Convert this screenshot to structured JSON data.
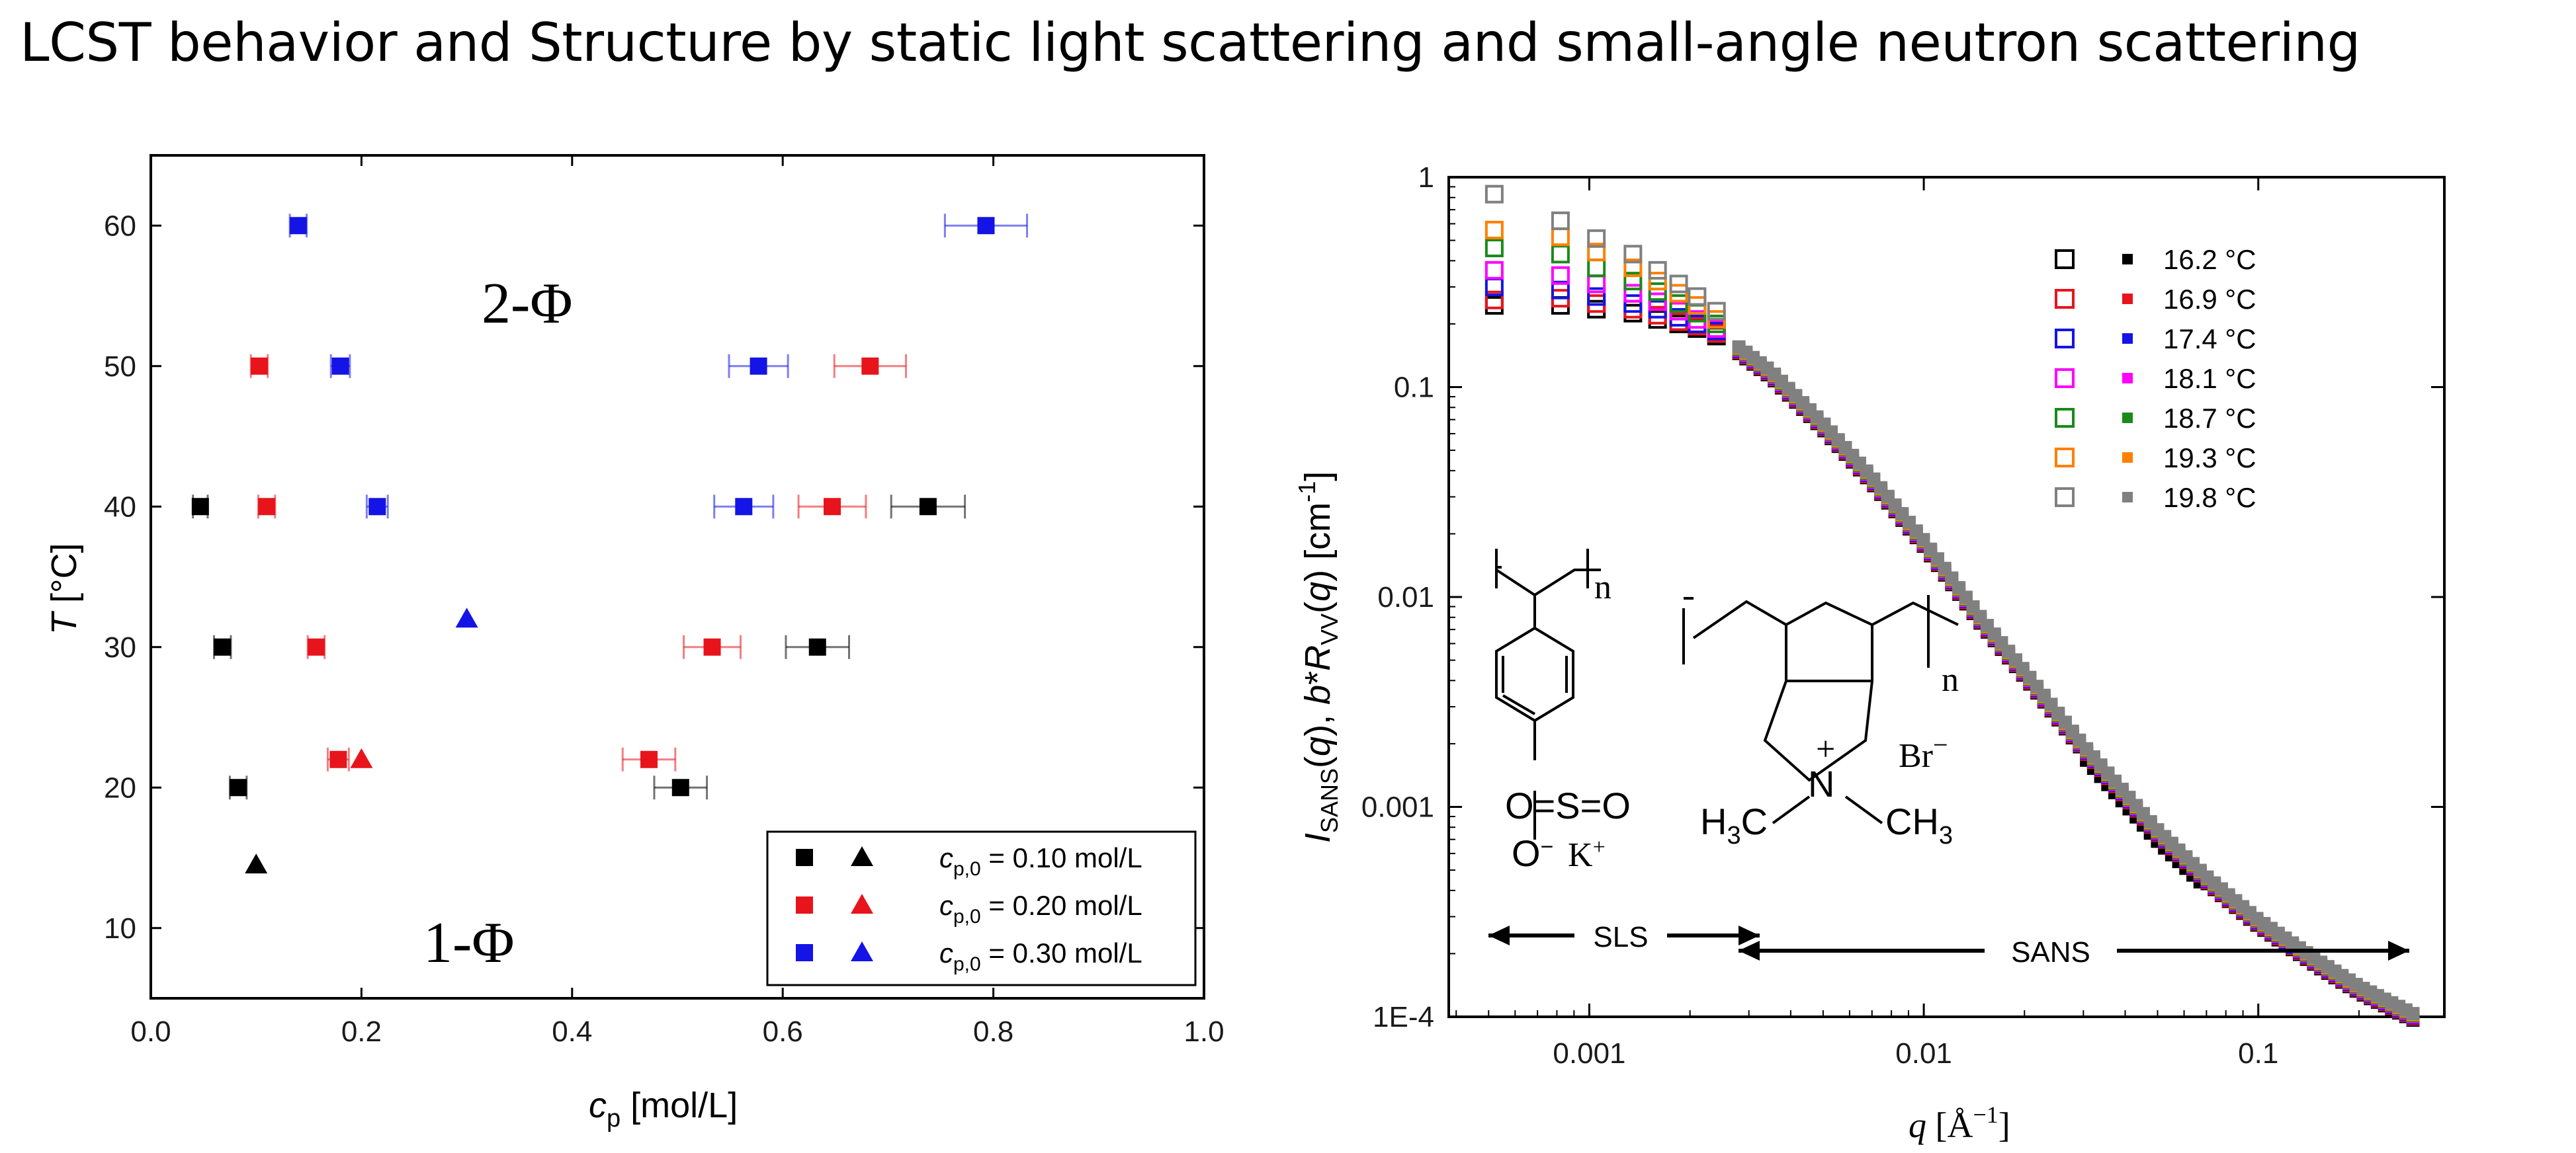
{
  "slide_title": "LCST behavior and Structure by static light scattering and small-angle neutron scattering",
  "colors": {
    "black": "#000000",
    "red": "#e8141c",
    "blue": "#1414e6",
    "magenta": "#ff00ff",
    "green": "#1a8a1a",
    "orange": "#ff8000",
    "gray": "#808080"
  },
  "chart_data": [
    {
      "type": "scatter",
      "title": "",
      "xlabel_main": "c",
      "xlabel_sub": "p",
      "xlabel_unit": " [mol/L]",
      "ylabel_main": "T",
      "ylabel_unit": " [°C]",
      "xlim": [
        0.0,
        1.0
      ],
      "ylim": [
        5,
        65
      ],
      "xticks": [
        "0.0",
        "0.2",
        "0.4",
        "0.6",
        "0.8",
        "1.0"
      ],
      "xtick_values": [
        0.0,
        0.2,
        0.4,
        0.6,
        0.8,
        1.0
      ],
      "yticks": [
        "10",
        "20",
        "30",
        "40",
        "50",
        "60"
      ],
      "ytick_values": [
        10,
        20,
        30,
        40,
        50,
        60
      ],
      "annotations": [
        {
          "text": "2-Φ",
          "x": 0.37,
          "y": 54
        },
        {
          "text": "1-Φ",
          "x": 0.32,
          "y": 9
        }
      ],
      "legend": [
        {
          "label": "c",
          "label_sub": "p,0",
          "label_rest": " = 0.10 mol/L",
          "color": "#000000"
        },
        {
          "label": "c",
          "label_sub": "p,0",
          "label_rest": " = 0.20 mol/L",
          "color": "#e8141c"
        },
        {
          "label": "c",
          "label_sub": "p,0",
          "label_rest": " = 0.30 mol/L",
          "color": "#1414e6"
        }
      ],
      "series": [
        {
          "name": "cp0 = 0.10 mol/L squares",
          "color": "#000000",
          "marker": "square",
          "points": [
            [
              0.047,
              40,
              0.007
            ],
            [
              0.068,
              30,
              0.008
            ],
            [
              0.083,
              20,
              0.008
            ],
            [
              0.633,
              30,
              0.03
            ],
            [
              0.738,
              40,
              0.035
            ],
            [
              0.503,
              20,
              0.025
            ]
          ]
        },
        {
          "name": "cp0 = 0.10 mol/L triangles",
          "color": "#000000",
          "marker": "triangle",
          "points": [
            [
              0.1,
              14.5,
              0
            ]
          ]
        },
        {
          "name": "cp0 = 0.20 mol/L squares",
          "color": "#e8141c",
          "marker": "square",
          "points": [
            [
              0.103,
              50,
              0.008
            ],
            [
              0.11,
              40,
              0.008
            ],
            [
              0.157,
              30,
              0.008
            ],
            [
              0.178,
              22,
              0.01
            ],
            [
              0.533,
              30,
              0.027
            ],
            [
              0.473,
              22,
              0.025
            ],
            [
              0.647,
              40,
              0.032
            ],
            [
              0.683,
              50,
              0.034
            ]
          ]
        },
        {
          "name": "cp0 = 0.20 mol/L triangles",
          "color": "#e8141c",
          "marker": "triangle",
          "points": [
            [
              0.2,
              22,
              0
            ]
          ]
        },
        {
          "name": "cp0 = 0.30 mol/L squares",
          "color": "#1414e6",
          "marker": "square",
          "points": [
            [
              0.14,
              60,
              0.008
            ],
            [
              0.18,
              50,
              0.009
            ],
            [
              0.215,
              40,
              0.01
            ],
            [
              0.577,
              50,
              0.028
            ],
            [
              0.563,
              40,
              0.028
            ],
            [
              0.793,
              60,
              0.039
            ]
          ]
        },
        {
          "name": "cp0 = 0.30 mol/L triangles",
          "color": "#1414e6",
          "marker": "triangle",
          "points": [
            [
              0.3,
              32,
              0
            ]
          ]
        }
      ]
    },
    {
      "type": "scatter",
      "scale": "log-log",
      "title": "",
      "xlabel": "q [Å⁻¹]",
      "ylabel": "I_SANS(q), b*R_VV(q) [cm⁻¹]",
      "xlim": [
        0.00038,
        0.36
      ],
      "ylim": [
        0.0001,
        1
      ],
      "xticks": [
        "0.001",
        "0.01",
        "0.1"
      ],
      "xtick_values": [
        0.001,
        0.01,
        0.1
      ],
      "yticks": [
        "1E-4",
        "0.001",
        "0.01",
        "0.1",
        "1"
      ],
      "ytick_values": [
        0.0001,
        0.001,
        0.01,
        0.1,
        1
      ],
      "legend": [
        {
          "label": "16.2 °C",
          "color": "#000000"
        },
        {
          "label": "16.9 °C",
          "color": "#e8141c"
        },
        {
          "label": "17.4 °C",
          "color": "#1414e6"
        },
        {
          "label": "18.1 °C",
          "color": "#ff00ff"
        },
        {
          "label": "18.7 °C",
          "color": "#1a8a1a"
        },
        {
          "label": "19.3 °C",
          "color": "#ff8000"
        },
        {
          "label": "19.8 °C",
          "color": "#808080"
        }
      ],
      "sls_q": [
        0.00052,
        0.00082,
        0.00105,
        0.00135,
        0.0016,
        0.00185,
        0.0021,
        0.0024
      ],
      "sls_series": [
        {
          "name": "16.2 °C",
          "color": "#000000",
          "values": [
            0.245,
            0.245,
            0.235,
            0.225,
            0.21,
            0.2,
            0.19,
            0.175
          ]
        },
        {
          "name": "16.9 °C",
          "color": "#e8141c",
          "values": [
            0.26,
            0.265,
            0.25,
            0.235,
            0.22,
            0.205,
            0.195,
            0.18
          ]
        },
        {
          "name": "17.4 °C",
          "color": "#1414e6",
          "values": [
            0.3,
            0.29,
            0.27,
            0.25,
            0.235,
            0.215,
            0.2,
            0.185
          ]
        },
        {
          "name": "18.1 °C",
          "color": "#ff00ff",
          "values": [
            0.36,
            0.34,
            0.31,
            0.28,
            0.255,
            0.23,
            0.21,
            0.19
          ]
        },
        {
          "name": "18.7 °C",
          "color": "#1a8a1a",
          "values": [
            0.46,
            0.43,
            0.37,
            0.32,
            0.285,
            0.25,
            0.225,
            0.2
          ]
        },
        {
          "name": "19.3 °C",
          "color": "#ff8000",
          "values": [
            0.56,
            0.52,
            0.44,
            0.37,
            0.32,
            0.28,
            0.245,
            0.21
          ]
        },
        {
          "name": "19.8 °C",
          "color": "#808080",
          "values": [
            0.83,
            0.62,
            0.51,
            0.43,
            0.36,
            0.31,
            0.27,
            0.23
          ]
        }
      ],
      "sans_curve": {
        "q": [
          0.0028,
          0.0035,
          0.005,
          0.007,
          0.01,
          0.015,
          0.02,
          0.03,
          0.05,
          0.07,
          0.1,
          0.15,
          0.2,
          0.29
        ],
        "values": [
          0.15,
          0.115,
          0.065,
          0.036,
          0.018,
          0.0075,
          0.0043,
          0.0019,
          0.00075,
          0.00045,
          0.00028,
          0.00018,
          0.000135,
          0.0001
        ]
      },
      "ranges": [
        {
          "label": "SLS",
          "from": 0.00052,
          "to": 0.0026
        },
        {
          "label": "SANS",
          "from": 0.0028,
          "to": 0.29
        }
      ],
      "chem_labels": {
        "n1": "n",
        "n2": "n",
        "sulfonate": "O=S=O",
        "o_minus": "O",
        "o_charge": "−",
        "k_plus": "K",
        "k_charge": "+",
        "ch3_left": "H",
        "ch3_left_3": "3",
        "ch3_left_c": "C",
        "nitrogen": "N",
        "n_charge": "+",
        "ch3_right": "CH",
        "ch3_right_3": "3",
        "bromide": "Br",
        "br_charge": "−"
      }
    }
  ]
}
